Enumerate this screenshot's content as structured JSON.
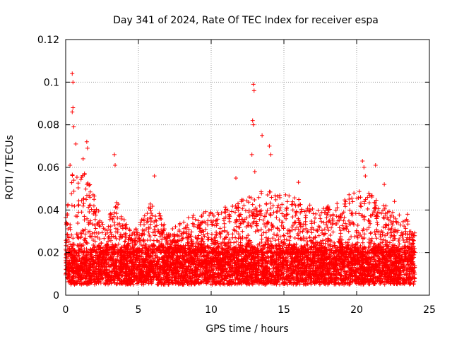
{
  "chart_data": {
    "type": "scatter",
    "title": "Day 341 of 2024, Rate Of TEC Index for receiver espa",
    "xlabel": "GPS time / hours",
    "ylabel": "ROTI / TECUs",
    "xlim": [
      0,
      25
    ],
    "ylim": [
      0,
      0.12
    ],
    "x_ticks": [
      0,
      5,
      10,
      15,
      20,
      25
    ],
    "x_tick_labels": [
      "0",
      "5",
      "10",
      "15",
      "20",
      "25"
    ],
    "y_ticks": [
      0,
      0.02,
      0.04,
      0.06,
      0.08,
      0.1,
      0.12
    ],
    "y_tick_labels": [
      "0",
      "0.02",
      "0.04",
      "0.06",
      "0.08",
      "0.1",
      "0.12"
    ],
    "grid": true,
    "marker": "+",
    "series": [
      {
        "name": "ROTI",
        "color": "#ff0000",
        "baseline_band": [
          0.005,
          0.025
        ],
        "notable_points": [
          {
            "x": 0.45,
            "y": 0.104
          },
          {
            "x": 0.5,
            "y": 0.1
          },
          {
            "x": 0.5,
            "y": 0.088
          },
          {
            "x": 0.45,
            "y": 0.086
          },
          {
            "x": 0.55,
            "y": 0.079
          },
          {
            "x": 0.7,
            "y": 0.071
          },
          {
            "x": 1.45,
            "y": 0.072
          },
          {
            "x": 1.5,
            "y": 0.069
          },
          {
            "x": 1.2,
            "y": 0.064
          },
          {
            "x": 0.3,
            "y": 0.061
          },
          {
            "x": 3.35,
            "y": 0.066
          },
          {
            "x": 3.4,
            "y": 0.061
          },
          {
            "x": 6.1,
            "y": 0.056
          },
          {
            "x": 12.9,
            "y": 0.099
          },
          {
            "x": 12.95,
            "y": 0.096
          },
          {
            "x": 12.85,
            "y": 0.082
          },
          {
            "x": 12.9,
            "y": 0.08
          },
          {
            "x": 13.5,
            "y": 0.075
          },
          {
            "x": 14.0,
            "y": 0.07
          },
          {
            "x": 14.1,
            "y": 0.066
          },
          {
            "x": 12.8,
            "y": 0.066
          },
          {
            "x": 13.0,
            "y": 0.058
          },
          {
            "x": 11.7,
            "y": 0.055
          },
          {
            "x": 20.4,
            "y": 0.063
          },
          {
            "x": 20.5,
            "y": 0.06
          },
          {
            "x": 21.3,
            "y": 0.061
          },
          {
            "x": 20.6,
            "y": 0.056
          },
          {
            "x": 16.0,
            "y": 0.053
          },
          {
            "x": 21.9,
            "y": 0.052
          },
          {
            "x": 22.6,
            "y": 0.044
          },
          {
            "x": 23.5,
            "y": 0.038
          }
        ],
        "activity_profile": [
          {
            "x": 0,
            "upper": 0.04
          },
          {
            "x": 0.5,
            "upper": 0.06
          },
          {
            "x": 1.5,
            "upper": 0.058
          },
          {
            "x": 2.5,
            "upper": 0.034
          },
          {
            "x": 3.5,
            "upper": 0.045
          },
          {
            "x": 4.5,
            "upper": 0.03
          },
          {
            "x": 6.0,
            "upper": 0.045
          },
          {
            "x": 7.0,
            "upper": 0.03
          },
          {
            "x": 8.5,
            "upper": 0.038
          },
          {
            "x": 10.0,
            "upper": 0.04
          },
          {
            "x": 11.5,
            "upper": 0.043
          },
          {
            "x": 13.0,
            "upper": 0.05
          },
          {
            "x": 14.5,
            "upper": 0.048
          },
          {
            "x": 16.0,
            "upper": 0.046
          },
          {
            "x": 17.5,
            "upper": 0.04
          },
          {
            "x": 19.0,
            "upper": 0.046
          },
          {
            "x": 20.5,
            "upper": 0.05
          },
          {
            "x": 22.0,
            "upper": 0.042
          },
          {
            "x": 23.5,
            "upper": 0.036
          },
          {
            "x": 24.0,
            "upper": 0.03
          }
        ]
      }
    ]
  }
}
